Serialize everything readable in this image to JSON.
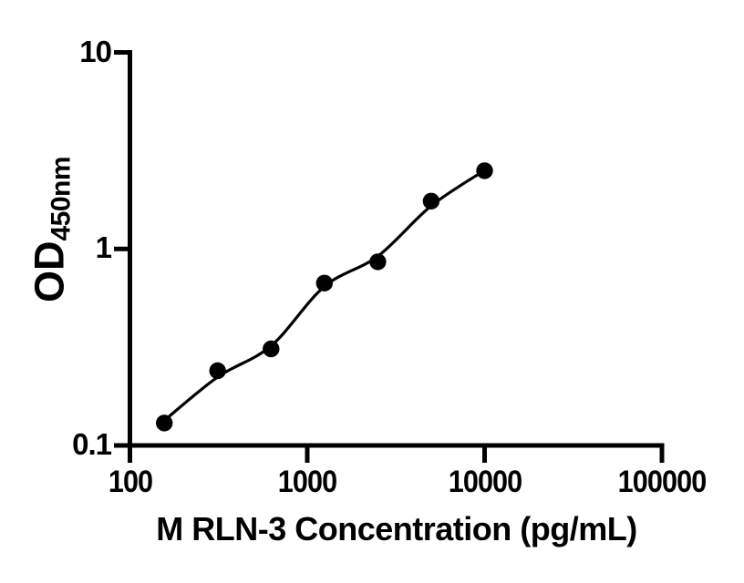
{
  "figure": {
    "background_color": "#ffffff",
    "axis_color": "#000000"
  },
  "chart_data": {
    "type": "scatter",
    "subtype": "elisa-standard-curve",
    "title": "",
    "xlabel": "M RLN-3 Concentration (pg/mL)",
    "ylabel": "OD450nm",
    "ylabel_main": "OD",
    "ylabel_sub": "450nm",
    "x_scale": "log10",
    "y_scale": "log10",
    "xlim": [
      100,
      100000
    ],
    "ylim": [
      0.1,
      10
    ],
    "x_ticks": [
      100,
      1000,
      10000,
      100000
    ],
    "x_tick_labels": [
      "100",
      "1000",
      "10000",
      "100000"
    ],
    "y_ticks": [
      10,
      1,
      0.1
    ],
    "y_tick_labels": [
      "10",
      "1",
      "0.1"
    ],
    "grid": false,
    "legend": false,
    "marker_color": "#000000",
    "line_color": "#000000",
    "series": [
      {
        "name": "standards",
        "marker": "circle",
        "x": [
          156.25,
          312.5,
          625,
          1250,
          2500,
          5000,
          10000
        ],
        "y": [
          0.13,
          0.24,
          0.31,
          0.67,
          0.86,
          1.75,
          2.5
        ]
      }
    ],
    "fit_curve": {
      "name": "fitted-curve",
      "x": [
        156.25,
        312.5,
        625,
        1250,
        2500,
        5000,
        10000
      ],
      "y": [
        0.134,
        0.223,
        0.321,
        0.644,
        0.918,
        1.656,
        2.51
      ]
    }
  }
}
